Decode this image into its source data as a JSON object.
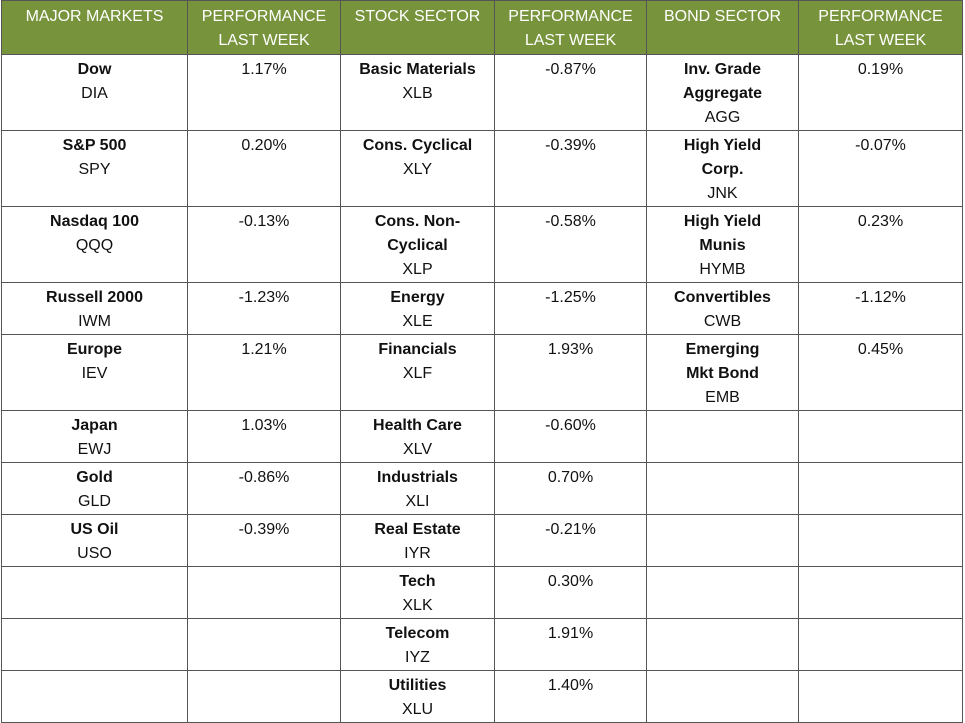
{
  "table": {
    "headers": [
      "MAJOR MARKETS",
      "PERFORMANCE LAST WEEK",
      "STOCK SECTOR",
      "PERFORMANCE LAST WEEK",
      "BOND SECTOR",
      "PERFORMANCE LAST WEEK"
    ],
    "markets": [
      {
        "name": "Dow",
        "ticker": "DIA",
        "performance": "1.17%"
      },
      {
        "name": "S&P 500",
        "ticker": "SPY",
        "performance": "0.20%"
      },
      {
        "name": "Nasdaq 100",
        "ticker": "QQQ",
        "performance": "-0.13%"
      },
      {
        "name": "Russell 2000",
        "ticker": "IWM",
        "performance": "-1.23%"
      },
      {
        "name": "Europe",
        "ticker": "IEV",
        "performance": "1.21%"
      },
      {
        "name": "Japan",
        "ticker": "EWJ",
        "performance": "1.03%"
      },
      {
        "name": "Gold",
        "ticker": "GLD",
        "performance": "-0.86%"
      },
      {
        "name": "US Oil",
        "ticker": "USO",
        "performance": "-0.39%"
      }
    ],
    "stocks": [
      {
        "name": "Basic Materials",
        "ticker": "XLB",
        "performance": "-0.87%"
      },
      {
        "name": "Cons. Cyclical",
        "ticker": "XLY",
        "performance": "-0.39%"
      },
      {
        "name": "Cons. Non-Cyclical",
        "ticker": "XLP",
        "performance": "-0.58%"
      },
      {
        "name": "Energy",
        "ticker": "XLE",
        "performance": "-1.25%"
      },
      {
        "name": "Financials",
        "ticker": "XLF",
        "performance": "1.93%"
      },
      {
        "name": "Health Care",
        "ticker": "XLV",
        "performance": "-0.60%"
      },
      {
        "name": "Industrials",
        "ticker": "XLI",
        "performance": "0.70%"
      },
      {
        "name": "Real Estate",
        "ticker": "IYR",
        "performance": "-0.21%"
      },
      {
        "name": "Tech",
        "ticker": "XLK",
        "performance": "0.30%"
      },
      {
        "name": "Telecom",
        "ticker": "IYZ",
        "performance": "1.91%"
      },
      {
        "name": "Utilities",
        "ticker": "XLU",
        "performance": "1.40%"
      }
    ],
    "bonds": [
      {
        "name": "Inv. Grade Aggregate",
        "ticker": "AGG",
        "performance": "0.19%"
      },
      {
        "name": "High Yield Corp.",
        "ticker": "JNK",
        "performance": "-0.07%"
      },
      {
        "name": "High Yield Munis",
        "ticker": "HYMB",
        "performance": "0.23%"
      },
      {
        "name": "Convertibles",
        "ticker": "CWB",
        "performance": "-1.12%"
      },
      {
        "name": "Emerging Mkt Bond",
        "ticker": "EMB",
        "performance": "0.45%"
      }
    ]
  }
}
